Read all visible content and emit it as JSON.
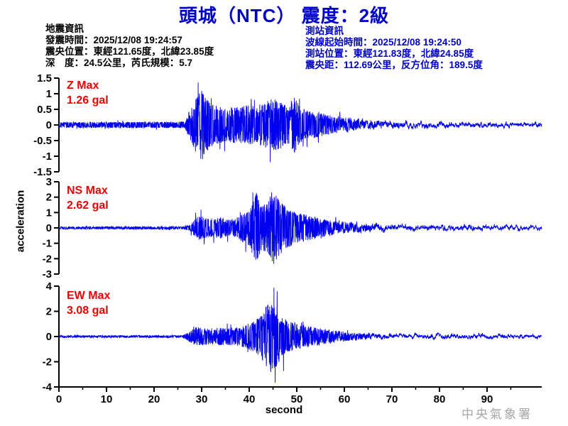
{
  "title": "頭城（NTC） 震度：2級",
  "event_info": {
    "heading": "地震資訊",
    "lines": [
      "發震時間：2025/12/08 19:24:57",
      "震央位置：東經121.65度，北緯23.85度",
      "深　度：24.5公里，芮氏規模：5.7"
    ]
  },
  "station_info": {
    "heading": "測站資訊",
    "lines": [
      "波線起始時間：2025/12/08 19:24:50",
      "測站位置：東經121.83度，北緯24.85度",
      "震央距：112.69公里，反方位角：189.5度"
    ]
  },
  "footer": "中央氣象署",
  "colors": {
    "title_blue": "#0000cc",
    "info_blue": "#0000cc",
    "trace_blue": "#0000ee",
    "max_red": "#ee0000",
    "axis_black": "#000000",
    "footer_gray": "#a6a6a6"
  },
  "chart_data": {
    "type": "line",
    "title": "",
    "xlabel": "second",
    "ylabel": "acceleration",
    "x_max": 101.5,
    "x_ticks_major": [
      0,
      10,
      20,
      30,
      40,
      50,
      60,
      70,
      80,
      90
    ],
    "x_minor_step": 5,
    "grid": false,
    "legend": "none",
    "plots": [
      {
        "channel": "Z",
        "max_label": "Z Max",
        "max_value": "1.26 gal",
        "max_gal": 1.26,
        "ylim": [
          -1.5,
          1.5
        ],
        "yticks": [
          1.5,
          1,
          0.5,
          0,
          -0.5,
          -1,
          -1.5
        ],
        "seed": 11,
        "envelope": [
          [
            0,
            0.09
          ],
          [
            25,
            0.1
          ],
          [
            26.5,
            0.13
          ],
          [
            27.5,
            0.5
          ],
          [
            28.5,
            0.8
          ],
          [
            30,
            1.2
          ],
          [
            31.5,
            0.8
          ],
          [
            33,
            0.62
          ],
          [
            35,
            0.55
          ],
          [
            37,
            0.6
          ],
          [
            39,
            0.65
          ],
          [
            41,
            0.6
          ],
          [
            43,
            0.7
          ],
          [
            45,
            0.85
          ],
          [
            46.5,
            0.75
          ],
          [
            48,
            0.6
          ],
          [
            49.5,
            0.9
          ],
          [
            51,
            0.55
          ],
          [
            53,
            0.42
          ],
          [
            55,
            0.38
          ],
          [
            58,
            0.32
          ],
          [
            62,
            0.26
          ],
          [
            66,
            0.22
          ],
          [
            70,
            0.2
          ],
          [
            75,
            0.17
          ],
          [
            80,
            0.15
          ],
          [
            85,
            0.14
          ],
          [
            90,
            0.14
          ],
          [
            95,
            0.13
          ],
          [
            101.5,
            0.12
          ]
        ]
      },
      {
        "channel": "NS",
        "max_label": "NS Max",
        "max_value": "2.62 gal",
        "max_gal": 2.62,
        "ylim": [
          -3,
          3
        ],
        "yticks": [
          3,
          2,
          1,
          0,
          -1,
          -2,
          -3
        ],
        "seed": 23,
        "envelope": [
          [
            0,
            0.08
          ],
          [
            26,
            0.09
          ],
          [
            27.5,
            0.18
          ],
          [
            28.5,
            0.55
          ],
          [
            29.5,
            0.8
          ],
          [
            31,
            0.65
          ],
          [
            32.5,
            0.6
          ],
          [
            34,
            0.7
          ],
          [
            35.5,
            0.55
          ],
          [
            37,
            0.6
          ],
          [
            38.5,
            0.9
          ],
          [
            40,
            1.2
          ],
          [
            41.5,
            2.3
          ],
          [
            42.5,
            1.5
          ],
          [
            43.5,
            1.6
          ],
          [
            45,
            2.5
          ],
          [
            46,
            2.0
          ],
          [
            47,
            1.6
          ],
          [
            48,
            1.3
          ],
          [
            49.5,
            1.1
          ],
          [
            51,
            0.95
          ],
          [
            53,
            0.8
          ],
          [
            55,
            0.65
          ],
          [
            57,
            0.55
          ],
          [
            59,
            0.48
          ],
          [
            62,
            0.42
          ],
          [
            65,
            0.38
          ],
          [
            68,
            0.35
          ],
          [
            72,
            0.32
          ],
          [
            76,
            0.3
          ],
          [
            80,
            0.3
          ],
          [
            84,
            0.32
          ],
          [
            88,
            0.28
          ],
          [
            92,
            0.26
          ],
          [
            96,
            0.24
          ],
          [
            101.5,
            0.22
          ]
        ]
      },
      {
        "channel": "EW",
        "max_label": "EW Max",
        "max_value": "3.08 gal",
        "max_gal": 3.08,
        "ylim": [
          -4,
          4
        ],
        "yticks": [
          4,
          2,
          0,
          -2,
          -4
        ],
        "seed": 37,
        "envelope": [
          [
            0,
            0.08
          ],
          [
            26,
            0.09
          ],
          [
            27.5,
            0.45
          ],
          [
            29,
            0.75
          ],
          [
            31,
            0.65
          ],
          [
            33,
            0.7
          ],
          [
            35,
            0.65
          ],
          [
            37,
            0.75
          ],
          [
            39,
            0.9
          ],
          [
            41,
            1.2
          ],
          [
            42.5,
            1.7
          ],
          [
            43.5,
            2.4
          ],
          [
            44.5,
            3.0
          ],
          [
            45.2,
            2.9
          ],
          [
            46,
            2.2
          ],
          [
            47,
            1.7
          ],
          [
            48,
            1.3
          ],
          [
            49.5,
            1.1
          ],
          [
            51,
            0.95
          ],
          [
            53,
            0.8
          ],
          [
            55,
            0.7
          ],
          [
            57,
            0.6
          ],
          [
            59,
            0.52
          ],
          [
            62,
            0.45
          ],
          [
            65,
            0.4
          ],
          [
            68,
            0.36
          ],
          [
            72,
            0.32
          ],
          [
            76,
            0.3
          ],
          [
            80,
            0.32
          ],
          [
            84,
            0.3
          ],
          [
            88,
            0.28
          ],
          [
            92,
            0.26
          ],
          [
            96,
            0.24
          ],
          [
            101.5,
            0.22
          ]
        ]
      }
    ]
  }
}
